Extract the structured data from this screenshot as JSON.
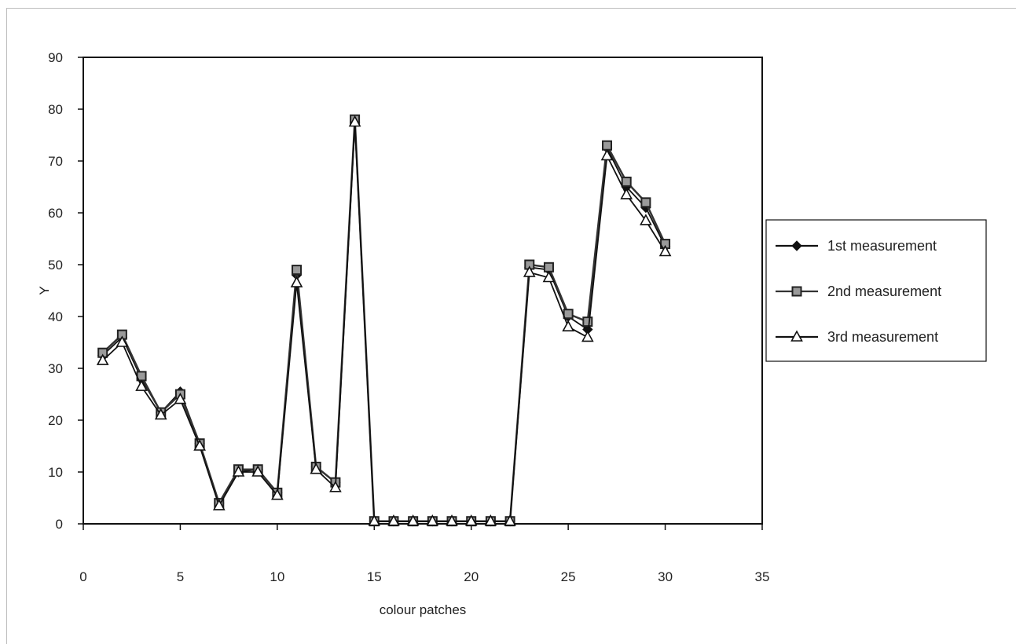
{
  "chart_data": {
    "type": "line",
    "title": "",
    "xlabel": "colour patches",
    "ylabel": "Y",
    "xlim": [
      0,
      35
    ],
    "ylim": [
      0,
      90
    ],
    "x_ticks": [
      0,
      5,
      10,
      15,
      20,
      25,
      30,
      35
    ],
    "y_ticks": [
      0,
      10,
      20,
      30,
      40,
      50,
      60,
      70,
      80,
      90
    ],
    "grid": false,
    "legend_position": "right",
    "x": [
      1,
      2,
      3,
      4,
      5,
      6,
      7,
      8,
      9,
      10,
      11,
      12,
      13,
      14,
      15,
      16,
      17,
      18,
      19,
      20,
      21,
      22,
      23,
      24,
      25,
      26,
      27,
      28,
      29,
      30
    ],
    "series": [
      {
        "name": "1st measurement",
        "marker": "diamond",
        "color": "#111111",
        "values": [
          32.5,
          36,
          28,
          21.5,
          25.5,
          15.5,
          4,
          10,
          10.5,
          6,
          48,
          11,
          8,
          77.5,
          0.5,
          0.5,
          0.5,
          0.5,
          0.5,
          0.5,
          0.5,
          0.5,
          49.5,
          49,
          40,
          37.5,
          72.5,
          65,
          61,
          53.5
        ]
      },
      {
        "name": "2nd measurement",
        "marker": "square",
        "color": "#333333",
        "values": [
          33,
          36.5,
          28.5,
          21.5,
          25,
          15.5,
          4,
          10.5,
          10.5,
          6,
          49,
          11,
          8,
          78,
          0.5,
          0.5,
          0.5,
          0.5,
          0.5,
          0.5,
          0.5,
          0.5,
          50,
          49.5,
          40.5,
          39,
          73,
          66,
          62,
          54
        ]
      },
      {
        "name": "3rd measurement",
        "marker": "triangle",
        "color": "#111111",
        "values": [
          31.5,
          35,
          26.5,
          21,
          24,
          15,
          3.5,
          10,
          10,
          5.5,
          46.5,
          10.5,
          7,
          77.5,
          0.5,
          0.5,
          0.5,
          0.5,
          0.5,
          0.5,
          0.5,
          0.5,
          48.5,
          47.5,
          38,
          36,
          71,
          63.5,
          58.5,
          52.5
        ]
      }
    ]
  }
}
